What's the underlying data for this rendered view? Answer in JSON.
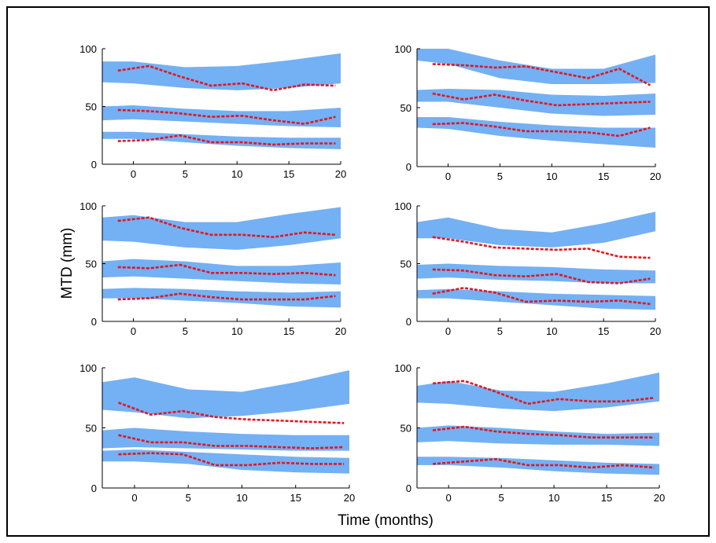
{
  "figure": {
    "ylabel": "MTD (mm)",
    "xlabel": "Time (months)"
  },
  "colors": {
    "band": "#74b0f4",
    "median": "#e8131c",
    "axis": "#000000",
    "frame_border": "#000000"
  },
  "chart_data": [
    {
      "type": "line",
      "panel": "top-left",
      "xlim": [
        -3,
        20
      ],
      "ylim": [
        0,
        100
      ],
      "xticks": [
        "0",
        "5",
        "10",
        "15",
        "20"
      ],
      "yticks": [
        "0",
        "50",
        "100"
      ],
      "bands": [
        {
          "x": [
            -3,
            0,
            5,
            10,
            15,
            20
          ],
          "lower": [
            71,
            70,
            66,
            64,
            66,
            70
          ],
          "upper": [
            89,
            89,
            84,
            85,
            90,
            96
          ]
        },
        {
          "x": [
            -3,
            0,
            5,
            10,
            15,
            20
          ],
          "lower": [
            38,
            39,
            37,
            35,
            33,
            32
          ],
          "upper": [
            50,
            51,
            48,
            46,
            46,
            49
          ]
        },
        {
          "x": [
            -3,
            0,
            5,
            10,
            15,
            20
          ],
          "lower": [
            22,
            22,
            19,
            16,
            14,
            13
          ],
          "upper": [
            28,
            28,
            26,
            24,
            23,
            23
          ]
        }
      ],
      "series": [
        {
          "x": [
            -1.5,
            1.5,
            4.5,
            7.5,
            10.5,
            13.5,
            16.5,
            19.5
          ],
          "values": [
            81,
            85,
            76,
            68,
            70,
            64,
            69,
            68
          ]
        },
        {
          "x": [
            -1.5,
            1.5,
            4.5,
            7.5,
            10.5,
            13.5,
            16.5,
            19.5
          ],
          "values": [
            47,
            46,
            44,
            41,
            42,
            38,
            35,
            41
          ]
        },
        {
          "x": [
            -1.5,
            1.5,
            4.5,
            7.5,
            10.5,
            13.5,
            16.5,
            19.5
          ],
          "values": [
            20,
            21,
            25,
            19,
            19,
            17,
            18,
            18
          ]
        }
      ]
    },
    {
      "type": "line",
      "panel": "top-right",
      "xlim": [
        -3,
        20
      ],
      "ylim": [
        0,
        100
      ],
      "xticks": [
        "0",
        "5",
        "10",
        "15",
        "20"
      ],
      "yticks": [
        "0",
        "50",
        "100"
      ],
      "bands": [
        {
          "x": [
            -3,
            0,
            5,
            10,
            15,
            20
          ],
          "lower": [
            90,
            87,
            75,
            70,
            70,
            71
          ],
          "upper": [
            100,
            100,
            90,
            83,
            83,
            95
          ]
        },
        {
          "x": [
            -3,
            0,
            5,
            10,
            15,
            20
          ],
          "lower": [
            55,
            55,
            50,
            45,
            43,
            44
          ],
          "upper": [
            65,
            66,
            65,
            61,
            60,
            62
          ]
        },
        {
          "x": [
            -3,
            0,
            5,
            10,
            15,
            20
          ],
          "lower": [
            33,
            32,
            26,
            22,
            19,
            16
          ],
          "upper": [
            42,
            42,
            38,
            35,
            33,
            33
          ]
        }
      ],
      "series": [
        {
          "x": [
            -1.5,
            1.5,
            4.5,
            7.5,
            10.5,
            13.5,
            16.5,
            19.5
          ],
          "values": [
            87,
            86,
            84,
            85,
            80,
            75,
            83,
            69
          ]
        },
        {
          "x": [
            -1.5,
            1.5,
            4.5,
            7.5,
            10.5,
            13.5,
            16.5,
            19.5
          ],
          "values": [
            62,
            57,
            61,
            56,
            52,
            53,
            54,
            55
          ]
        },
        {
          "x": [
            -1.5,
            1.5,
            4.5,
            7.5,
            10.5,
            13.5,
            16.5,
            19.5
          ],
          "values": [
            36,
            37,
            34,
            30,
            30,
            29,
            26,
            33
          ]
        }
      ]
    },
    {
      "type": "line",
      "panel": "middle-left",
      "xlim": [
        -3,
        20
      ],
      "ylim": [
        0,
        100
      ],
      "xticks": [
        "0",
        "5",
        "10",
        "15",
        "20"
      ],
      "yticks": [
        "0",
        "50",
        "100"
      ],
      "bands": [
        {
          "x": [
            -3,
            0,
            5,
            10,
            15,
            20
          ],
          "lower": [
            70,
            69,
            64,
            62,
            66,
            72
          ],
          "upper": [
            90,
            92,
            86,
            86,
            93,
            99
          ]
        },
        {
          "x": [
            -3,
            0,
            5,
            10,
            15,
            20
          ],
          "lower": [
            38,
            39,
            37,
            35,
            33,
            32
          ],
          "upper": [
            52,
            54,
            52,
            48,
            48,
            51
          ]
        },
        {
          "x": [
            -3,
            0,
            5,
            10,
            15,
            20
          ],
          "lower": [
            20,
            20,
            18,
            16,
            13,
            12
          ],
          "upper": [
            28,
            29,
            28,
            26,
            25,
            26
          ]
        }
      ],
      "series": [
        {
          "x": [
            -1.5,
            1.5,
            4.5,
            7.5,
            10.5,
            13.5,
            16.5,
            19.5
          ],
          "values": [
            87,
            90,
            81,
            75,
            75,
            73,
            77,
            75
          ]
        },
        {
          "x": [
            -1.5,
            1.5,
            4.5,
            7.5,
            10.5,
            13.5,
            16.5,
            19.5
          ],
          "values": [
            47,
            46,
            49,
            42,
            42,
            41,
            42,
            40
          ]
        },
        {
          "x": [
            -1.5,
            1.5,
            4.5,
            7.5,
            10.5,
            13.5,
            16.5,
            19.5
          ],
          "values": [
            19,
            20,
            24,
            21,
            19,
            19,
            19,
            22
          ]
        }
      ]
    },
    {
      "type": "line",
      "panel": "middle-right",
      "xlim": [
        -3,
        20
      ],
      "ylim": [
        0,
        100
      ],
      "xticks": [
        "0",
        "5",
        "10",
        "15",
        "20"
      ],
      "yticks": [
        "0",
        "50",
        "100"
      ],
      "bands": [
        {
          "x": [
            -3,
            0,
            5,
            10,
            15,
            20
          ],
          "lower": [
            72,
            72,
            66,
            64,
            68,
            78
          ],
          "upper": [
            86,
            90,
            80,
            77,
            85,
            95
          ]
        },
        {
          "x": [
            -3,
            0,
            5,
            10,
            15,
            20
          ],
          "lower": [
            37,
            38,
            36,
            35,
            33,
            33
          ],
          "upper": [
            49,
            50,
            48,
            47,
            45,
            44
          ]
        },
        {
          "x": [
            -3,
            0,
            5,
            10,
            15,
            20
          ],
          "lower": [
            20,
            20,
            17,
            14,
            11,
            10
          ],
          "upper": [
            27,
            28,
            26,
            24,
            23,
            22
          ]
        }
      ],
      "series": [
        {
          "x": [
            -1.5,
            1.5,
            4.5,
            7.5,
            10.5,
            13.5,
            16.5,
            19.5
          ],
          "values": [
            73,
            69,
            64,
            63,
            62,
            63,
            56,
            55
          ]
        },
        {
          "x": [
            -1.5,
            1.5,
            4.5,
            7.5,
            10.5,
            13.5,
            16.5,
            19.5
          ],
          "values": [
            45,
            44,
            40,
            39,
            41,
            34,
            33,
            37
          ]
        },
        {
          "x": [
            -1.5,
            1.5,
            4.5,
            7.5,
            10.5,
            13.5,
            16.5,
            19.5
          ],
          "values": [
            24,
            29,
            25,
            17,
            18,
            17,
            18,
            15
          ]
        }
      ]
    },
    {
      "type": "line",
      "panel": "bottom-left",
      "xlim": [
        -3,
        20
      ],
      "ylim": [
        0,
        100
      ],
      "xticks": [
        "0",
        "5",
        "10",
        "15",
        "20"
      ],
      "yticks": [
        "0",
        "50",
        "100"
      ],
      "bands": [
        {
          "x": [
            -3,
            0,
            5,
            10,
            15,
            20
          ],
          "lower": [
            65,
            63,
            58,
            60,
            64,
            70
          ],
          "upper": [
            88,
            92,
            82,
            80,
            88,
            98
          ]
        },
        {
          "x": [
            -3,
            0,
            5,
            10,
            15,
            20
          ],
          "lower": [
            33,
            34,
            33,
            32,
            31,
            31
          ],
          "upper": [
            48,
            50,
            47,
            45,
            44,
            44
          ]
        },
        {
          "x": [
            -3,
            0,
            5,
            10,
            15,
            20
          ],
          "lower": [
            22,
            22,
            20,
            15,
            13,
            12
          ],
          "upper": [
            31,
            32,
            30,
            28,
            26,
            25
          ]
        }
      ],
      "series": [
        {
          "x": [
            -1.5,
            1.5,
            4.5,
            7.5,
            10.5,
            13.5,
            16.5,
            19.5
          ],
          "values": [
            71,
            61,
            64,
            59,
            57,
            56,
            55,
            54
          ]
        },
        {
          "x": [
            -1.5,
            1.5,
            4.5,
            7.5,
            10.5,
            13.5,
            16.5,
            19.5
          ],
          "values": [
            44,
            38,
            38,
            35,
            35,
            34,
            33,
            34
          ]
        },
        {
          "x": [
            -1.5,
            1.5,
            4.5,
            7.5,
            10.5,
            13.5,
            16.5,
            19.5
          ],
          "values": [
            28,
            29,
            28,
            19,
            19,
            21,
            20,
            20
          ]
        }
      ]
    },
    {
      "type": "line",
      "panel": "bottom-right",
      "xlim": [
        -3,
        20
      ],
      "ylim": [
        0,
        100
      ],
      "xticks": [
        "0",
        "5",
        "10",
        "15",
        "20"
      ],
      "yticks": [
        "0",
        "50",
        "100"
      ],
      "bands": [
        {
          "x": [
            -3,
            0,
            5,
            10,
            15,
            20
          ],
          "lower": [
            71,
            70,
            66,
            64,
            67,
            72
          ],
          "upper": [
            85,
            89,
            81,
            80,
            87,
            96
          ]
        },
        {
          "x": [
            -3,
            0,
            5,
            10,
            15,
            20
          ],
          "lower": [
            38,
            39,
            37,
            36,
            36,
            35
          ],
          "upper": [
            50,
            52,
            50,
            47,
            45,
            46
          ]
        },
        {
          "x": [
            -3,
            0,
            5,
            10,
            15,
            20
          ],
          "lower": [
            19,
            19,
            17,
            14,
            12,
            11
          ],
          "upper": [
            26,
            26,
            25,
            23,
            21,
            20
          ]
        }
      ],
      "series": [
        {
          "x": [
            -1.5,
            1.5,
            4.5,
            7.5,
            10.5,
            13.5,
            16.5,
            19.5
          ],
          "values": [
            87,
            89,
            80,
            70,
            74,
            72,
            72,
            75
          ]
        },
        {
          "x": [
            -1.5,
            1.5,
            4.5,
            7.5,
            10.5,
            13.5,
            16.5,
            19.5
          ],
          "values": [
            48,
            51,
            47,
            45,
            44,
            42,
            42,
            42
          ]
        },
        {
          "x": [
            -1.5,
            1.5,
            4.5,
            7.5,
            10.5,
            13.5,
            16.5,
            19.5
          ],
          "values": [
            20,
            22,
            24,
            19,
            19,
            17,
            19,
            17
          ]
        }
      ]
    }
  ]
}
